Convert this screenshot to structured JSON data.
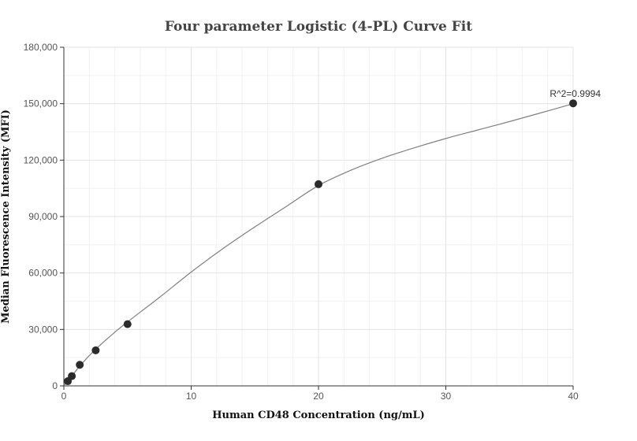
{
  "chart_data": {
    "type": "scatter",
    "title": "Four parameter Logistic (4-PL) Curve Fit",
    "xlabel": "Human CD48 Concentration (ng/mL)",
    "ylabel": "Median Fluorescence Intensity (MFI)",
    "xlim": [
      0,
      40
    ],
    "ylim": [
      0,
      180000
    ],
    "x_ticks": [
      0,
      10,
      20,
      30,
      40
    ],
    "y_ticks": [
      0,
      30000,
      60000,
      90000,
      120000,
      150000,
      180000
    ],
    "x_tick_labels": [
      "0",
      "10",
      "20",
      "30",
      "40"
    ],
    "y_tick_labels": [
      "0",
      "30,000",
      "60,000",
      "90,000",
      "120,000",
      "150,000",
      "180,000"
    ],
    "grid": true,
    "series": [
      {
        "points": [
          {
            "x": 0.3125,
            "y": 2500
          },
          {
            "x": 0.625,
            "y": 5200
          },
          {
            "x": 1.25,
            "y": 11200
          },
          {
            "x": 2.5,
            "y": 18900
          },
          {
            "x": 5,
            "y": 32800
          },
          {
            "x": 20,
            "y": 107200
          },
          {
            "x": 40,
            "y": 150200
          }
        ]
      }
    ],
    "fit": {
      "type": "4PL",
      "points": [
        {
          "x": 0,
          "y": 200
        },
        {
          "x": 0.3125,
          "y": 2400
        },
        {
          "x": 0.625,
          "y": 5000
        },
        {
          "x": 1.25,
          "y": 10600
        },
        {
          "x": 2.5,
          "y": 19500
        },
        {
          "x": 4,
          "y": 28500
        },
        {
          "x": 5,
          "y": 34000
        },
        {
          "x": 7.5,
          "y": 47000
        },
        {
          "x": 10,
          "y": 60500
        },
        {
          "x": 12.5,
          "y": 73000
        },
        {
          "x": 15,
          "y": 84500
        },
        {
          "x": 17.5,
          "y": 95500
        },
        {
          "x": 20,
          "y": 106500
        },
        {
          "x": 22.5,
          "y": 114500
        },
        {
          "x": 25,
          "y": 121000
        },
        {
          "x": 27.5,
          "y": 126500
        },
        {
          "x": 30,
          "y": 131500
        },
        {
          "x": 32.5,
          "y": 136000
        },
        {
          "x": 35,
          "y": 140500
        },
        {
          "x": 37.5,
          "y": 145200
        },
        {
          "x": 40,
          "y": 150000
        }
      ]
    },
    "annotations": [
      {
        "text": "R^2=0.9994",
        "x": 40,
        "y": 150200
      }
    ]
  }
}
